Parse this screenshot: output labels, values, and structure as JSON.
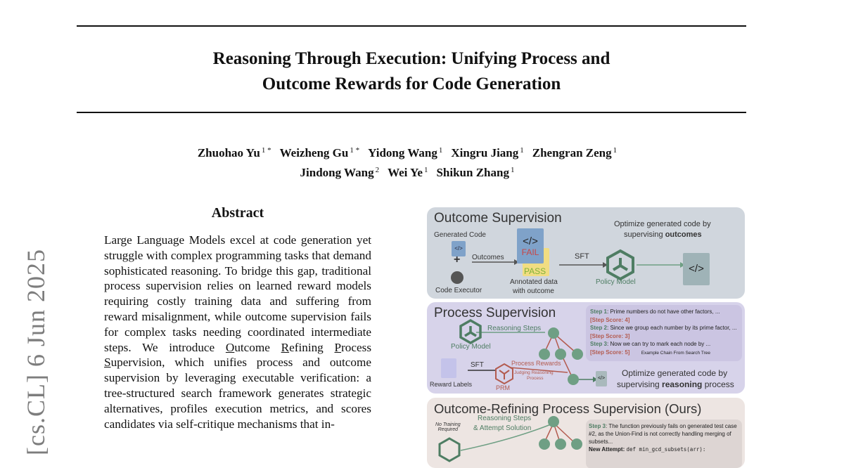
{
  "paper": {
    "title_line1": "Reasoning Through Execution: Unifying Process and",
    "title_line2": "Outcome Rewards for Code Generation",
    "authors_line1": [
      {
        "name": "Zhuohao Yu",
        "aff": "1 *"
      },
      {
        "name": "Weizheng Gu",
        "aff": "1 *"
      },
      {
        "name": "Yidong Wang",
        "aff": "1"
      },
      {
        "name": "Xingru Jiang",
        "aff": "1"
      },
      {
        "name": "Zhengran Zeng",
        "aff": "1"
      }
    ],
    "authors_line2": [
      {
        "name": "Jindong Wang",
        "aff": "2"
      },
      {
        "name": "Wei Ye",
        "aff": "1"
      },
      {
        "name": "Shikun Zhang",
        "aff": "1"
      }
    ],
    "arxiv_watermark": "[cs.CL]  6 Jun 2025"
  },
  "abstract": {
    "heading": "Abstract",
    "text_before": "Large Language Models excel at code generation yet struggle with complex programming tasks that demand sophisticated reasoning. To bridge this gap, traditional process supervision relies on learned reward models requiring costly training data and suffering from reward misalignment, while outcome supervision fails for complex tasks needing coordinated intermediate steps. We introduce ",
    "acronym_words": [
      "O",
      "utcome ",
      "R",
      "efining ",
      "P",
      "rocess ",
      "S",
      "upervision"
    ],
    "text_after": ", which unifies process and outcome supervision by leveraging executable verification: a tree-structured search framework generates strategic alternatives, profiles execution metrics, and scores candidates via self-critique mechanisms that in-"
  },
  "figure": {
    "colors": {
      "outcome_panel": "#d0d6dd",
      "process_panel": "#d7d3ea",
      "orps_panel": "#ede5e2",
      "green": "#4e7d63",
      "red": "#b35b4f"
    },
    "outcome": {
      "title": "Outcome Supervision",
      "generated_code": "Generated Code",
      "plus": "+",
      "code_executor": "Code Executor",
      "outcomes": "Outcomes",
      "code_glyph": "</>",
      "fail": "FAIL",
      "pass": "PASS",
      "annotated_1": "Annotated data",
      "annotated_2": "with outcome",
      "sft": "SFT",
      "policy_model": "Policy Model",
      "optimize_1": "Optimize generated code by",
      "optimize_2a": "supervising ",
      "optimize_2b": "outcomes"
    },
    "process": {
      "title": "Process Supervision",
      "reasoning_steps": "Reasoning Steps",
      "policy_model": "Policy Model",
      "sft": "SFT",
      "reward_labels": "Reward Labels",
      "process_rewards": "Process Rewards",
      "prm": "PRM",
      "judging_1": "Judging Reasoning",
      "judging_2": "Process",
      "steps": [
        {
          "label": "Step 1",
          "text": ": Prime numbers do not have other factors, ...",
          "score": "[Step Score: 4]"
        },
        {
          "label": "Step 2",
          "text": ": Since we group each number by its prime factor, ...",
          "score": "[Step Score: 3]"
        },
        {
          "label": "Step 3",
          "text": ": Now we can try to mark each node by ...",
          "score": "[Step Score: 5]"
        }
      ],
      "example_chain": "Example Chain From Search Tree",
      "optimize_1": "Optimize generated code by",
      "optimize_2a": "supervising ",
      "optimize_2b": "reasoning",
      "optimize_2c": " process"
    },
    "orps": {
      "title": "Outcome-Refining Process Supervision (Ours)",
      "no_training_1": "No Training",
      "no_training_2": "Required",
      "reasoning_1": "Reasoning Steps",
      "reasoning_2": "& Attempt Solution",
      "step_label": "Step 3",
      "step_text": ": The function previously fails on generated test case #2, as the Union-Find is not correctly handling merging of subsets...",
      "new_attempt": "New Attempt:",
      "code": "def min_gcd_subsets(arr):"
    }
  }
}
